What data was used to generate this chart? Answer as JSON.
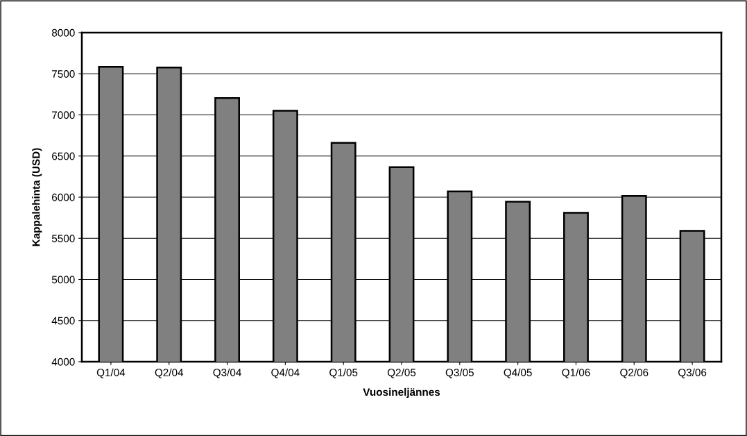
{
  "chart_data": {
    "type": "bar",
    "xlabel": "Vuosineljännes",
    "ylabel": "Kappalehinta (USD)",
    "categories": [
      "Q1/04",
      "Q2/04",
      "Q3/04",
      "Q4/04",
      "Q1/05",
      "Q2/05",
      "Q3/05",
      "Q4/05",
      "Q1/06",
      "Q2/06",
      "Q3/06"
    ],
    "values": [
      7585,
      7575,
      7205,
      7050,
      6660,
      6365,
      6070,
      5945,
      5810,
      6015,
      5590
    ],
    "color": "#808080",
    "ylim": [
      4000,
      8000
    ],
    "yticks": [
      4000,
      4500,
      5000,
      5500,
      6000,
      6500,
      7000,
      7500,
      8000
    ],
    "grid": "y",
    "legend": false
  }
}
